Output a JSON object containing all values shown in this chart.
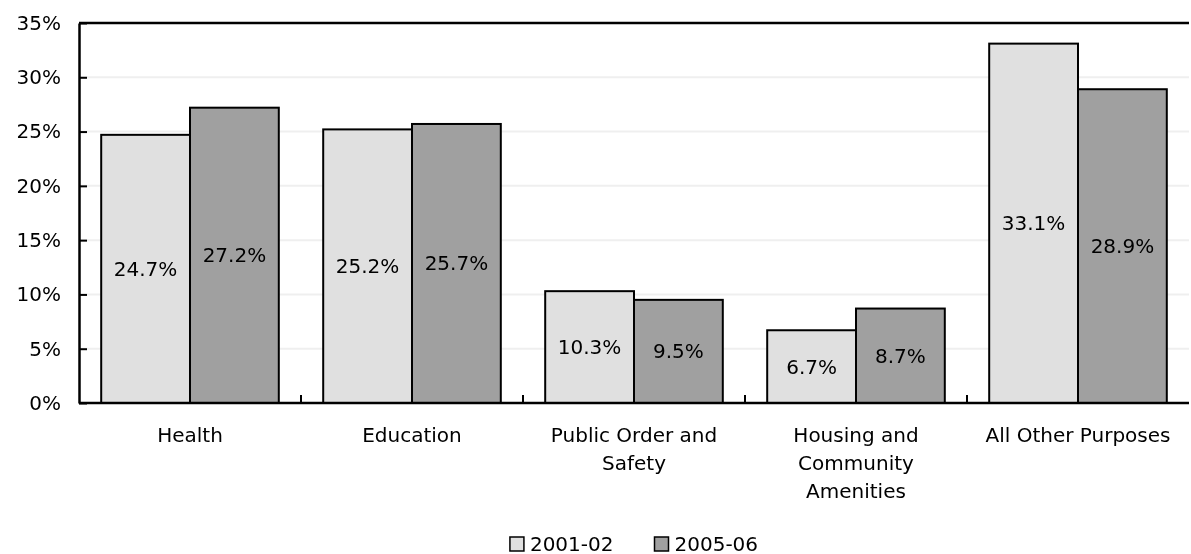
{
  "chart_data": {
    "type": "bar",
    "categories": [
      "Health",
      "Education",
      "Public Order and Safety",
      "Housing and Community Amenities",
      "All Other Purposes"
    ],
    "series": [
      {
        "name": "2001-02",
        "color": "#e0e0e0",
        "values": [
          24.7,
          25.2,
          10.3,
          6.7,
          33.1
        ],
        "value_labels": [
          "24.7%",
          "25.2%",
          "10.3%",
          "6.7%",
          "33.1%"
        ]
      },
      {
        "name": "2005-06",
        "color": "#a0a0a0",
        "values": [
          27.2,
          25.7,
          9.5,
          8.7,
          28.9
        ],
        "value_labels": [
          "27.2%",
          "25.7%",
          "9.5%",
          "8.7%",
          "28.9%"
        ]
      }
    ],
    "ylim": [
      0,
      35
    ],
    "yticks": [
      {
        "value": 0,
        "label": "0%"
      },
      {
        "value": 5,
        "label": "5%"
      },
      {
        "value": 10,
        "label": "10%"
      },
      {
        "value": 15,
        "label": "15%"
      },
      {
        "value": 20,
        "label": "20%"
      },
      {
        "value": 25,
        "label": "25%"
      },
      {
        "value": 30,
        "label": "30%"
      },
      {
        "value": 35,
        "label": "35%"
      }
    ],
    "grid": "y",
    "legend": "bottom"
  }
}
